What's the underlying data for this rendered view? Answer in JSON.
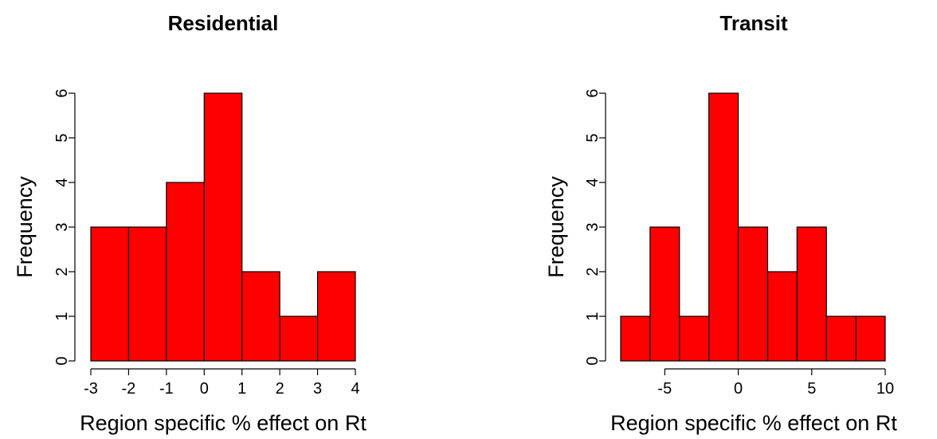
{
  "chart_data": [
    {
      "type": "bar",
      "title": "Residential",
      "xlabel": "Region specific % effect on Rt",
      "ylabel": "Frequency",
      "bins": [
        [
          -3,
          -2
        ],
        [
          -2,
          -1
        ],
        [
          -1,
          0
        ],
        [
          0,
          1
        ],
        [
          1,
          2
        ],
        [
          2,
          3
        ],
        [
          3,
          4
        ]
      ],
      "values": [
        3,
        3,
        4,
        6,
        2,
        1,
        2
      ],
      "xlim": [
        -3,
        4
      ],
      "ylim": [
        0,
        6
      ],
      "xticks": [
        -3,
        -2,
        -1,
        0,
        1,
        2,
        3,
        4
      ],
      "xtick_labels": [
        "-3",
        "-2",
        "-1",
        "0",
        "1",
        "2",
        "3",
        "4"
      ],
      "yticks": [
        0,
        1,
        2,
        3,
        4,
        5,
        6
      ],
      "ytick_labels": [
        "0",
        "1",
        "2",
        "3",
        "4",
        "5",
        "6"
      ],
      "bar_color": "#ff0000",
      "grid": false
    },
    {
      "type": "bar",
      "title": "Transit",
      "xlabel": "Region specific % effect on Rt",
      "ylabel": "Frequency",
      "bins": [
        [
          -8,
          -6
        ],
        [
          -6,
          -4
        ],
        [
          -4,
          -2
        ],
        [
          -2,
          0
        ],
        [
          0,
          2
        ],
        [
          2,
          4
        ],
        [
          4,
          6
        ],
        [
          6,
          8
        ],
        [
          8,
          10
        ]
      ],
      "values": [
        1,
        3,
        1,
        6,
        3,
        2,
        3,
        1,
        1
      ],
      "xlim": [
        -8,
        10
      ],
      "ylim": [
        0,
        6
      ],
      "xticks": [
        -5,
        0,
        5,
        10
      ],
      "xtick_labels": [
        "-5",
        "0",
        "5",
        "10"
      ],
      "yticks": [
        0,
        1,
        2,
        3,
        4,
        5,
        6
      ],
      "ytick_labels": [
        "0",
        "1",
        "2",
        "3",
        "4",
        "5",
        "6"
      ],
      "bar_color": "#ff0000",
      "grid": false
    }
  ]
}
